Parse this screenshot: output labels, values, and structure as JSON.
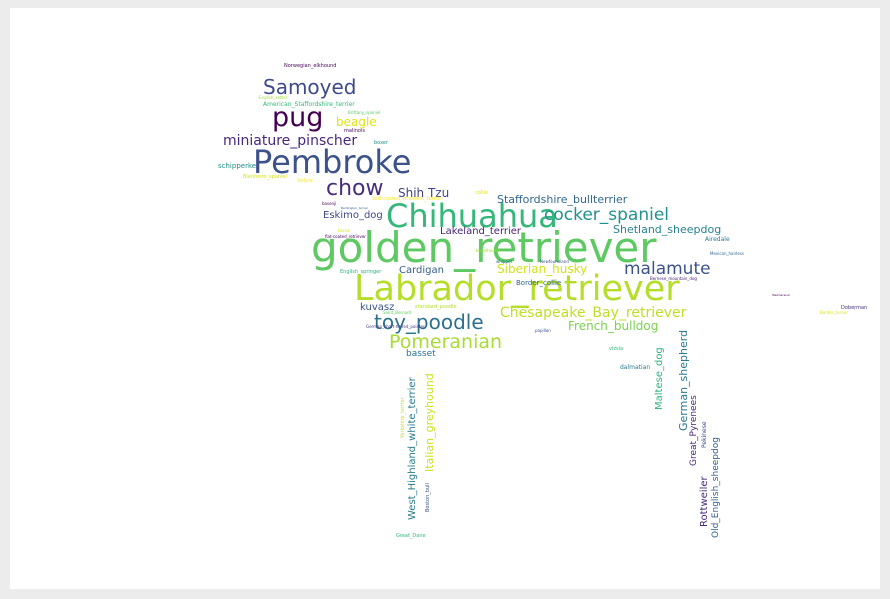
{
  "cloud": {
    "words": [
      {
        "id": "golden_retriever",
        "text": "golden_retriever",
        "color": "#5ec962"
      },
      {
        "id": "Labrador_retriever",
        "text": "Labrador_retriever",
        "color": "#b5de2b"
      },
      {
        "id": "Chihuahua",
        "text": "Chihuahua",
        "color": "#35b779"
      },
      {
        "id": "Pembroke",
        "text": "Pembroke",
        "color": "#3b528b"
      },
      {
        "id": "pug",
        "text": "pug",
        "color": "#440154"
      },
      {
        "id": "Samoyed",
        "text": "Samoyed",
        "color": "#3e4a89"
      },
      {
        "id": "chow",
        "text": "chow",
        "color": "#472d7b"
      },
      {
        "id": "toy_poodle",
        "text": "toy_poodle",
        "color": "#2c728e"
      },
      {
        "id": "Pomeranian",
        "text": "Pomeranian",
        "color": "#a8db34"
      },
      {
        "id": "malamute",
        "text": "malamute",
        "color": "#3b528b"
      },
      {
        "id": "cocker_spaniel",
        "text": "cocker_spaniel",
        "color": "#21918c"
      },
      {
        "id": "Chesapeake_Bay_retriever",
        "text": "Chesapeake_Bay_retriever",
        "color": "#bddf26"
      },
      {
        "id": "miniature_pinscher",
        "text": "miniature_pinscher",
        "color": "#482878"
      },
      {
        "id": "French_bulldog",
        "text": "French_bulldog",
        "color": "#7ad151"
      },
      {
        "id": "Siberian_husky",
        "text": "Siberian_husky",
        "color": "#d2e21b"
      },
      {
        "id": "Staffordshire_bullterrier",
        "text": "Staffordshire_bullterrier",
        "color": "#31688e"
      },
      {
        "id": "Shih_Tzu",
        "text": "Shih Tzu",
        "color": "#414487"
      },
      {
        "id": "Eskimo_dog",
        "text": "Eskimo_dog",
        "color": "#3e4a89"
      },
      {
        "id": "Shetland_sheepdog",
        "text": "Shetland_sheepdog",
        "color": "#26828e"
      },
      {
        "id": "Lakeland_terrier",
        "text": "Lakeland_terrier",
        "color": "#482475"
      },
      {
        "id": "Cardigan",
        "text": "Cardigan",
        "color": "#355f8d"
      },
      {
        "id": "kuvasz",
        "text": "kuvasz",
        "color": "#3b528b"
      },
      {
        "id": "beagle",
        "text": "beagle",
        "color": "#dfe318"
      },
      {
        "id": "basset",
        "text": "basset",
        "color": "#2c728e"
      },
      {
        "id": "Border_collie",
        "text": "Border_collie",
        "color": "#31688e"
      },
      {
        "id": "schipperke",
        "text": "schipperke",
        "color": "#21918c"
      },
      {
        "id": "Airedale",
        "text": "Airedale",
        "color": "#2a788e"
      },
      {
        "id": "West_Highland_white_terrier",
        "text": "West_Highland_white_terrier",
        "color": "#287d8e"
      },
      {
        "id": "Italian_greyhound",
        "text": "Italian_greyhound",
        "color": "#cde11d"
      },
      {
        "id": "Maltese_dog",
        "text": "Maltese_dog",
        "color": "#2fb47c"
      },
      {
        "id": "German_shepherd",
        "text": "German_shepherd",
        "color": "#2a788e"
      },
      {
        "id": "Great_Pyrenees",
        "text": "Great_Pyrenees",
        "color": "#482878"
      },
      {
        "id": "Rottweiler",
        "text": "Rottweiler",
        "color": "#472c7a"
      },
      {
        "id": "Old_English_sheepdog",
        "text": "Old_English_sheepdog",
        "color": "#355f8d"
      },
      {
        "id": "Pekinese",
        "text": "Pekinese",
        "color": "#3f4788"
      },
      {
        "id": "Norwegian_elkhound",
        "text": "Norwegian_elkhound",
        "color": "#440154"
      },
      {
        "id": "American_Staffordshire_terrier",
        "text": "American_Staffordshire_terrier",
        "color": "#35b779"
      },
      {
        "id": "English_setter",
        "text": "English_setter",
        "color": "#a0da39"
      },
      {
        "id": "Brittany_spaniel",
        "text": "Brittany_spaniel",
        "color": "#5ec962"
      },
      {
        "id": "malinois",
        "text": "malinois",
        "color": "#46085c"
      },
      {
        "id": "boxer",
        "text": "boxer",
        "color": "#21918c"
      },
      {
        "id": "Blenheim_spaniel",
        "text": "Blenheim_spaniel",
        "color": "#d8e219"
      },
      {
        "id": "kelpie",
        "text": "kelpie",
        "color": "#fde725"
      },
      {
        "id": "soft_coated_wheaten_terrier",
        "text": "soft-coated_wheaten_terrier",
        "color": "#fde725"
      },
      {
        "id": "basenji",
        "text": "basenji",
        "color": "#440154"
      },
      {
        "id": "Bedlington_terrier",
        "text": "Bedlington_terrier",
        "color": "#355f8d"
      },
      {
        "id": "collie",
        "text": "collie",
        "color": "#e5e419"
      },
      {
        "id": "borzoi",
        "text": "borzoi",
        "color": "#dde318"
      },
      {
        "id": "flat_coated_retriever",
        "text": "flat-coated_retriever",
        "color": "#440154"
      },
      {
        "id": "English_springer",
        "text": "English_springer",
        "color": "#2db27d"
      },
      {
        "id": "bloodhound",
        "text": "bloodhound",
        "color": "#a2da37"
      },
      {
        "id": "Mexican_hairless",
        "text": "Mexican_hairless",
        "color": "#31688e"
      },
      {
        "id": "Bernese_mountain_dog",
        "text": "Bernese_mountain_dog",
        "color": "#482475"
      },
      {
        "id": "whippet",
        "text": "whippet",
        "color": "#2c728e"
      },
      {
        "id": "Newfoundland",
        "text": "Newfoundland",
        "color": "#3b528b"
      },
      {
        "id": "standard_poodle",
        "text": "standard_poodle",
        "color": "#b5de2b"
      },
      {
        "id": "Saint_Bernard",
        "text": "Saint_Bernard",
        "color": "#5ec962"
      },
      {
        "id": "German_short_haired_pointer",
        "text": "German_short-haired_pointer",
        "color": "#443983"
      },
      {
        "id": "papillon",
        "text": "papillon",
        "color": "#3b528b"
      },
      {
        "id": "vizsla",
        "text": "vizsla",
        "color": "#35b779"
      },
      {
        "id": "dalmatian",
        "text": "dalmatian",
        "color": "#2a788e"
      },
      {
        "id": "Yorkshire_terrier",
        "text": "Yorkshire_terrier",
        "color": "#c2df23"
      },
      {
        "id": "Boston_bull",
        "text": "Boston_bull",
        "color": "#3b528b"
      },
      {
        "id": "Great_Dane",
        "text": "Great_Dane",
        "color": "#35b779"
      },
      {
        "id": "Doberman",
        "text": "Doberman",
        "color": "#46337f"
      },
      {
        "id": "Border_terrier",
        "text": "Border_terrier",
        "color": "#dde318"
      },
      {
        "id": "Weimaraner",
        "text": "Weimaraner",
        "color": "#440154"
      }
    ]
  }
}
